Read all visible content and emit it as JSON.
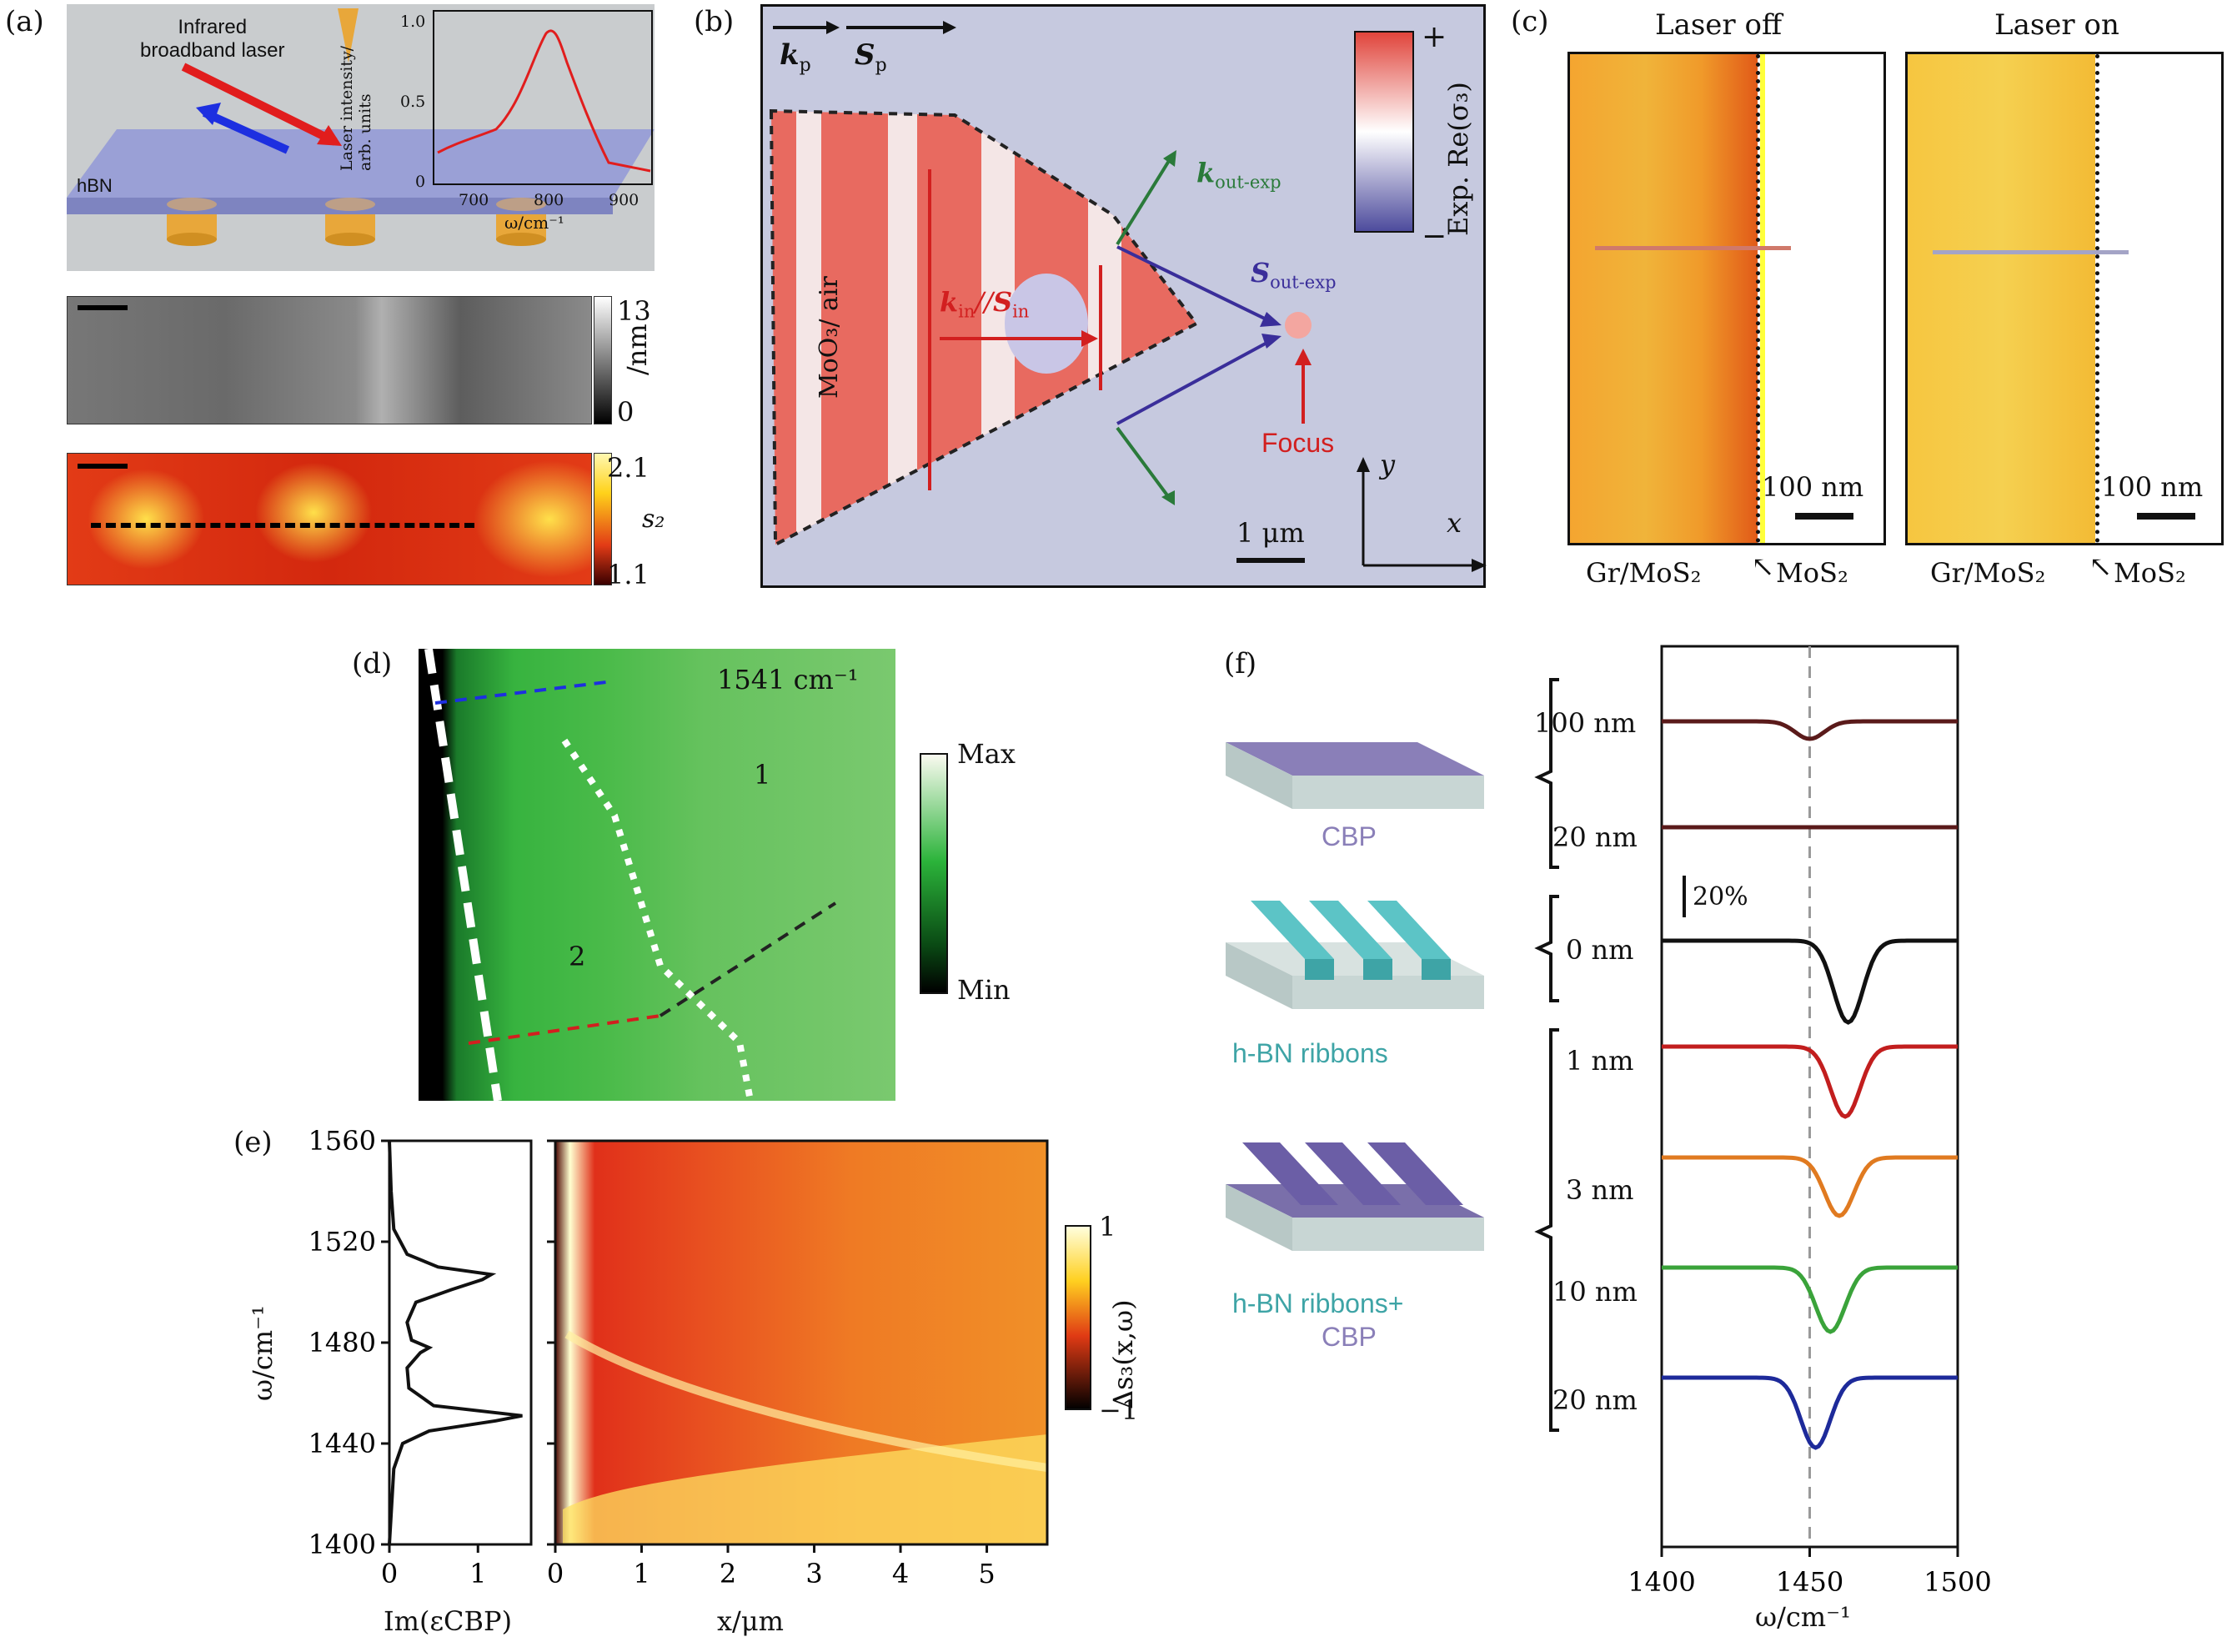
{
  "panel_a": {
    "label": "(a)",
    "laser_label_line1": "Infrared",
    "laser_label_line2": "broadband laser",
    "substrate_label": "hBN",
    "inset_ylabel_line1": "Laser intensity/",
    "inset_ylabel_line2": "arb. units",
    "inset_xlabel": "ω/cm⁻¹",
    "topo_scale_max": "13",
    "topo_scale_min": "0",
    "topo_unit": "/nm",
    "s2_scale_max": "2.1",
    "s2_scale_min": "1.1",
    "s2_label": "s₂",
    "colors": {
      "substrate": "#9aa0d6",
      "pillar": "#e8a73a",
      "laser": "#e11d1d",
      "reflect": "#1d2fe0"
    }
  },
  "panel_b": {
    "label": "(b)",
    "kp": "k",
    "kp_sub": "p",
    "sp": "S",
    "sp_sub": "p",
    "material": "MoO₃/ air",
    "kin": "k",
    "kin_sub": "in",
    "sin_sep": "//",
    "sin": "S",
    "sin_sub": "in",
    "kout": "k",
    "kout_sub": "out-exp",
    "sout": "S",
    "sout_sub": "out-exp",
    "focus": "Focus",
    "scale": "1 μm",
    "colorbar_label": "Exp. Re(σ₃)",
    "plus": "+",
    "minus": "−",
    "axis_x": "x",
    "axis_y": "y"
  },
  "panel_c": {
    "label": "(c)",
    "title_off": "Laser off",
    "title_on": "Laser on",
    "scale_off": "100 nm",
    "scale_on": "100 nm",
    "left_label_off": "Gr/MoS₂",
    "right_label_off": "MoS₂",
    "left_label_on": "Gr/MoS₂",
    "right_label_on": "MoS₂"
  },
  "panel_d": {
    "label": "(d)",
    "wavenumber": "1541 cm⁻¹",
    "region1": "1",
    "region2": "2",
    "cbar_max": "Max",
    "cbar_min": "Min"
  },
  "panel_e": {
    "label": "(e)",
    "chart_data": [
      {
        "type": "line",
        "title": "",
        "xlabel": "Im(εCBP)",
        "ylabel": "ω/cm⁻¹",
        "xlim": [
          0,
          1.6
        ],
        "ylim": [
          1400,
          1560
        ],
        "xticks": [
          "0",
          "1"
        ],
        "yticks": [
          "1400",
          "1440",
          "1480",
          "1520",
          "1560"
        ],
        "series": [
          {
            "name": "Im(εCBP)",
            "omega": [
              1400,
              1430,
              1440,
              1445,
              1449,
              1451,
              1455,
              1462,
              1470,
              1476,
              1478,
              1481,
              1488,
              1496,
              1501,
              1505,
              1507,
              1510,
              1515,
              1525,
              1540,
              1560
            ],
            "value": [
              0.0,
              0.05,
              0.15,
              0.45,
              1.2,
              1.5,
              0.5,
              0.22,
              0.2,
              0.35,
              0.45,
              0.25,
              0.2,
              0.3,
              0.7,
              1.05,
              1.15,
              0.55,
              0.2,
              0.05,
              0.02,
              0.0
            ]
          }
        ]
      },
      {
        "type": "heatmap",
        "title": "",
        "xlabel": "x/μm",
        "ylabel": "",
        "xlim": [
          0,
          5.7
        ],
        "ylim": [
          1400,
          1560
        ],
        "xticks": [
          "0",
          "1",
          "2",
          "3",
          "4",
          "5"
        ],
        "colorbar_label": "Δs₃(x,ω)",
        "colorbar_ticks": [
          "1",
          "−1"
        ],
        "colorbar_range": [
          -1,
          1
        ]
      }
    ]
  },
  "panel_f": {
    "label": "(f)",
    "schematic_labels": [
      "CBP",
      "h-BN ribbons",
      "h-BN ribbons+",
      "CBP"
    ],
    "scale_bar": "20%",
    "chart_data": {
      "type": "line",
      "title": "",
      "xlabel": "ω/cm⁻¹",
      "ylabel": "",
      "xlim": [
        1400,
        1500
      ],
      "xticks": [
        "1400",
        "1450",
        "1500"
      ],
      "reference_line": 1450,
      "series": [
        {
          "name": "100 nm",
          "color": "#5a1a1a",
          "dip_at": 1450,
          "dip_depth": 0.15
        },
        {
          "name": "20 nm",
          "color": "#5a1a1a",
          "dip_at": 1450,
          "dip_depth": 0.0
        },
        {
          "name": "0 nm",
          "color": "#111111",
          "dip_at": 1463,
          "dip_depth": 0.7
        },
        {
          "name": "1 nm",
          "color": "#c21e1e",
          "dip_at": 1462,
          "dip_depth": 0.6
        },
        {
          "name": "3 nm",
          "color": "#e07a20",
          "dip_at": 1460,
          "dip_depth": 0.5
        },
        {
          "name": "10 nm",
          "color": "#3aa33a",
          "dip_at": 1457,
          "dip_depth": 0.55
        },
        {
          "name": "20 nm",
          "color": "#1d2a9a",
          "dip_at": 1452,
          "dip_depth": 0.6
        }
      ]
    }
  }
}
